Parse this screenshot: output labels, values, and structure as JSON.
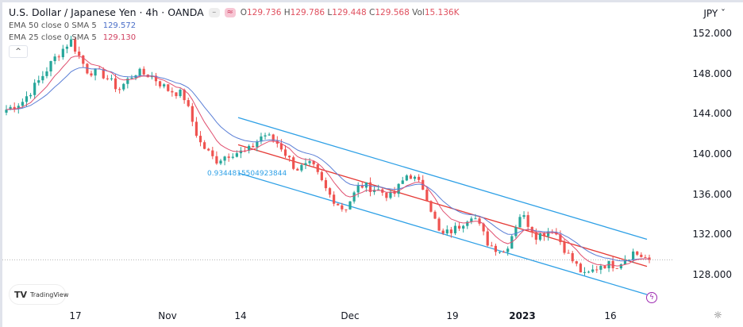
{
  "header": {
    "title": "U.S. Dollar / Japanese Yen · 4h · OANDA",
    "ohlc": {
      "o_label": "O",
      "o": "129.736",
      "h_label": "H",
      "h": "129.786",
      "l_label": "L",
      "l": "129.448",
      "c_label": "C",
      "c": "129.568",
      "vol_label": "Vol",
      "vol": "15.136K"
    }
  },
  "indicators": [
    {
      "label": "EMA 50 close 0 SMA 5",
      "value": "129.572",
      "color": "#5b7fd6"
    },
    {
      "label": "EMA 25 close 0 SMA 5",
      "value": "129.130",
      "color": "#e05070"
    }
  ],
  "collapse_icon": "chevron-up-icon",
  "currency": "JPY",
  "logo": "TradingView",
  "annotation": "0.9344815504923844",
  "chart_data": {
    "type": "candlestick",
    "ylim": [
      125,
      153.5
    ],
    "y_ticks": [
      "152.000",
      "148.000",
      "144.000",
      "140.000",
      "136.000",
      "132.000",
      "128.000"
    ],
    "x_ticks": [
      "17",
      "Nov",
      "14",
      "Dec",
      "19",
      "2023",
      "16"
    ],
    "closes_sampled": [
      144.5,
      145.3,
      147.3,
      149.6,
      151.4,
      148.4,
      148.0,
      146.5,
      148.2,
      147.9,
      146.5,
      146.0,
      141.3,
      139.4,
      140.2,
      140.3,
      142.1,
      141.0,
      138.6,
      139.0,
      136.2,
      134.5,
      137.0,
      136.6,
      135.8,
      138.2,
      136.6,
      131.9,
      132.7,
      134.2,
      131.1,
      130.3,
      134.2,
      131.9,
      132.7,
      129.9,
      127.9,
      129.1,
      129.1,
      130.3,
      129.568
    ],
    "last_price": 129.568,
    "channel": {
      "upper": [
        143.7,
        131.6
      ],
      "middle": [
        141.0,
        128.9
      ],
      "lower": [
        138.2,
        126.1
      ]
    },
    "colors": {
      "up": "#26a69a",
      "down": "#ef5350",
      "channel": "#2ea0e6",
      "middle": "#e53935",
      "ema50": "#5b7fd6",
      "ema25": "#e05070"
    }
  }
}
